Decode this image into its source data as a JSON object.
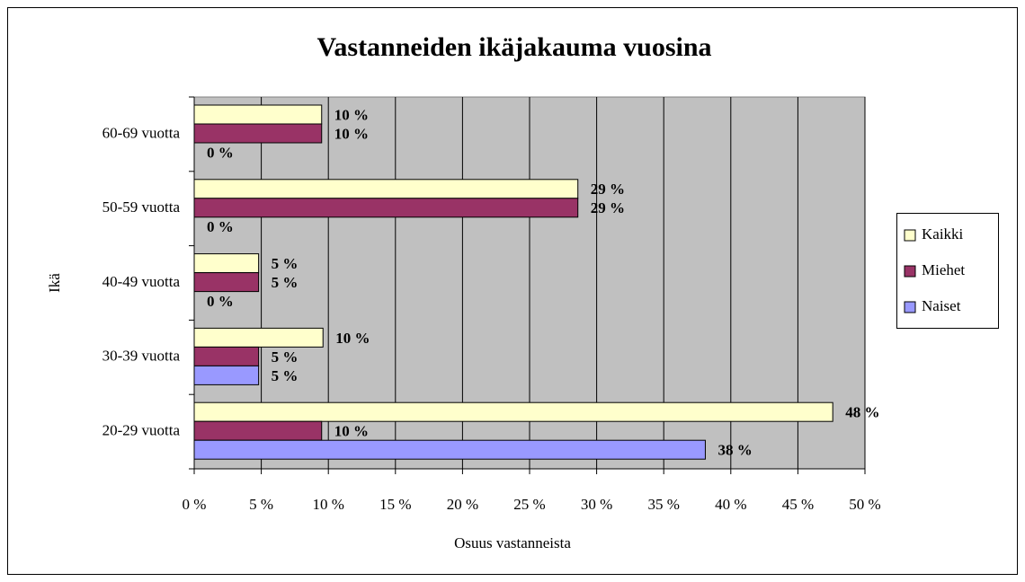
{
  "chart_data": {
    "type": "bar",
    "orientation": "horizontal",
    "title": "Vastanneiden ikäjakauma vuosina",
    "x_label": "Osuus vastanneista",
    "y_label": "Ikä",
    "categories": [
      "20-29 vuotta",
      "30-39 vuotta",
      "40-49 vuotta",
      "50-59 vuotta",
      "60-69 vuotta"
    ],
    "series": [
      {
        "name": "Kaikki",
        "color": "#ffffcc",
        "values": [
          47.6,
          9.6,
          4.8,
          28.6,
          9.5
        ],
        "value_labels": [
          "48 %",
          "10 %",
          "5 %",
          "29 %",
          "10 %"
        ]
      },
      {
        "name": "Miehet",
        "color": "#993366",
        "values": [
          9.5,
          4.8,
          4.8,
          28.6,
          9.5
        ],
        "value_labels": [
          "10 %",
          "5 %",
          "5 %",
          "29 %",
          "10 %"
        ]
      },
      {
        "name": "Naiset",
        "color": "#9999ff",
        "values": [
          38.1,
          4.8,
          0,
          0,
          0
        ],
        "value_labels": [
          "38 %",
          "5 %",
          "0 %",
          "0 %",
          "0 %"
        ]
      }
    ],
    "xlim": [
      0,
      50
    ],
    "xticks": [
      {
        "value": 0,
        "label": "0 %"
      },
      {
        "value": 5,
        "label": "5 %"
      },
      {
        "value": 10,
        "label": "10 %"
      },
      {
        "value": 15,
        "label": "15 %"
      },
      {
        "value": 20,
        "label": "20 %"
      },
      {
        "value": 25,
        "label": "25 %"
      },
      {
        "value": 30,
        "label": "30 %"
      },
      {
        "value": 35,
        "label": "35 %"
      },
      {
        "value": 40,
        "label": "40 %"
      },
      {
        "value": 45,
        "label": "45 %"
      },
      {
        "value": 50,
        "label": "50 %"
      }
    ],
    "grid": true,
    "legend": "right",
    "plot_background": "#c0c0c0"
  }
}
